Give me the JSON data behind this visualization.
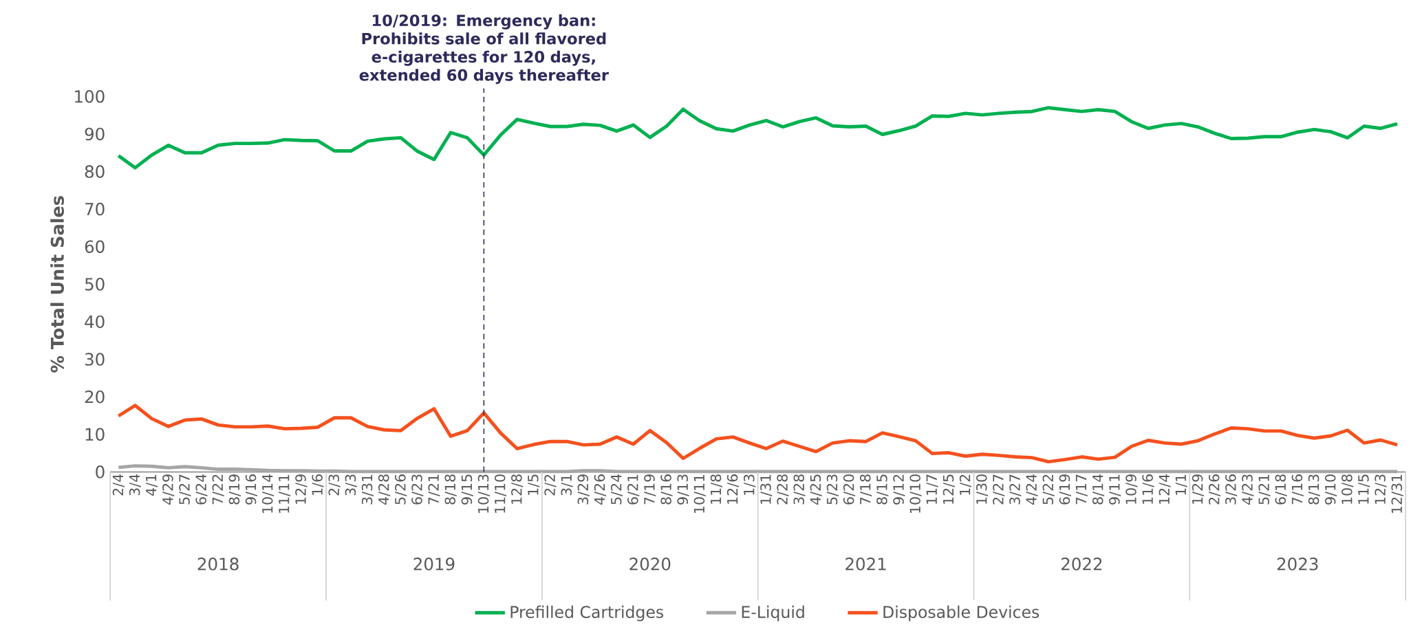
{
  "chart_data": {
    "type": "line",
    "ylabel": "% Total Unit Sales",
    "categories": [
      "2/4",
      "3/4",
      "4/1",
      "4/29",
      "5/27",
      "6/24",
      "7/22",
      "8/19",
      "9/16",
      "10/14",
      "11/11",
      "12/9",
      "1/6",
      "2/3",
      "3/3",
      "3/31",
      "4/28",
      "5/26",
      "6/23",
      "7/21",
      "8/18",
      "9/15",
      "10/13",
      "11/10",
      "12/8",
      "1/5",
      "2/2",
      "3/1",
      "3/29",
      "4/26",
      "5/24",
      "6/21",
      "7/19",
      "8/16",
      "9/13",
      "10/11",
      "11/8",
      "12/6",
      "1/3",
      "1/31",
      "2/28",
      "3/28",
      "4/25",
      "5/23",
      "6/20",
      "7/18",
      "8/15",
      "9/12",
      "10/10",
      "11/7",
      "12/5",
      "1/2",
      "1/30",
      "2/27",
      "3/27",
      "4/24",
      "5/22",
      "6/19",
      "7/17",
      "8/14",
      "9/11",
      "10/9",
      "11/6",
      "12/4",
      "1/1",
      "1/29",
      "2/26",
      "3/26",
      "4/23",
      "5/21",
      "6/18",
      "7/16",
      "8/13",
      "9/10",
      "10/8",
      "11/5",
      "12/3",
      "12/31"
    ],
    "series": [
      {
        "name": "Prefilled Cartridges",
        "color": "#00b050",
        "values": [
          84.2,
          81.0,
          84.4,
          87.0,
          85.0,
          85.0,
          87.0,
          87.5,
          87.5,
          87.6,
          88.5,
          88.3,
          88.2,
          85.5,
          85.5,
          88.1,
          88.7,
          89.0,
          85.4,
          83.2,
          90.4,
          89.0,
          84.4,
          89.7,
          93.9,
          92.9,
          92.0,
          92.0,
          92.6,
          92.3,
          90.8,
          92.4,
          89.1,
          92.1,
          96.6,
          93.5,
          91.4,
          90.8,
          92.4,
          93.6,
          91.9,
          93.3,
          94.3,
          92.2,
          91.9,
          92.1,
          89.9,
          90.9,
          92.1,
          94.8,
          94.7,
          95.5,
          95.1,
          95.5,
          95.8,
          96.0,
          97.0,
          96.5,
          96.0,
          96.5,
          96.0,
          93.3,
          91.5,
          92.4,
          92.8,
          91.9,
          90.2,
          88.8,
          88.9,
          89.3,
          89.3,
          90.5,
          91.2,
          90.6,
          89.0,
          92.1,
          91.5,
          92.7
        ]
      },
      {
        "name": "E-Liquid",
        "color": "#a6a6a6",
        "values": [
          1.2,
          1.6,
          1.5,
          1.1,
          1.4,
          1.1,
          0.7,
          0.7,
          0.6,
          0.4,
          0.3,
          0.3,
          0.2,
          0.2,
          0.1,
          0.1,
          0.1,
          0.1,
          0.1,
          0.1,
          0.1,
          0.1,
          0.1,
          0.1,
          0.1,
          0.1,
          0.1,
          0.1,
          0.3,
          0.3,
          0.1,
          0.1,
          0.1,
          0.1,
          0.1,
          0.1,
          0.1,
          0.1,
          0.1,
          0.1,
          0.1,
          0.1,
          0.1,
          0.1,
          0.1,
          0.1,
          0.1,
          0.1,
          0.1,
          0.1,
          0.1,
          0.1,
          0.1,
          0.1,
          0.1,
          0.1,
          0.1,
          0.1,
          0.1,
          0.1,
          0.1,
          0.1,
          0.1,
          0.1,
          0.1,
          0.1,
          0.1,
          0.1,
          0.1,
          0.1,
          0.1,
          0.1,
          0.1,
          0.1,
          0.1,
          0.1,
          0.1,
          0.1
        ]
      },
      {
        "name": "Disposable Devices",
        "color": "#f4511e",
        "values": [
          14.9,
          17.7,
          14.2,
          12.1,
          13.8,
          14.1,
          12.5,
          12.0,
          12.0,
          12.2,
          11.5,
          11.6,
          11.9,
          14.4,
          14.4,
          12.1,
          11.2,
          11.0,
          14.3,
          16.8,
          9.5,
          11.0,
          15.7,
          10.4,
          6.2,
          7.3,
          8.1,
          8.1,
          7.2,
          7.4,
          9.3,
          7.4,
          11.0,
          7.8,
          3.6,
          6.3,
          8.8,
          9.3,
          7.7,
          6.2,
          8.2,
          6.8,
          5.4,
          7.7,
          8.3,
          8.1,
          10.4,
          9.4,
          8.3,
          4.9,
          5.1,
          4.2,
          4.7,
          4.4,
          4.0,
          3.8,
          2.7,
          3.3,
          4.0,
          3.4,
          3.9,
          6.8,
          8.4,
          7.7,
          7.4,
          8.3,
          10.1,
          11.7,
          11.5,
          10.9,
          10.9,
          9.7,
          9.0,
          9.6,
          11.1,
          7.7,
          8.5,
          7.2
        ]
      }
    ],
    "ylim": [
      0,
      100
    ],
    "yticks": [
      0,
      10,
      20,
      30,
      40,
      50,
      60,
      70,
      80,
      90,
      100
    ],
    "ref_lines": [
      {
        "axis": "x",
        "value": "10/13",
        "label": "10/2019: Emergency ban: Prohibits sale of all flavored e-cigarettes for 120 days, extended 60 days thereafter",
        "color": "#2e2a5a",
        "line_style": "dashed"
      }
    ],
    "annotations": [
      "2018",
      "2019",
      "2020",
      "2021",
      "2022",
      "2023"
    ],
    "legend": "bottom",
    "grid": false,
    "marker": "none",
    "line_style": "solid"
  }
}
